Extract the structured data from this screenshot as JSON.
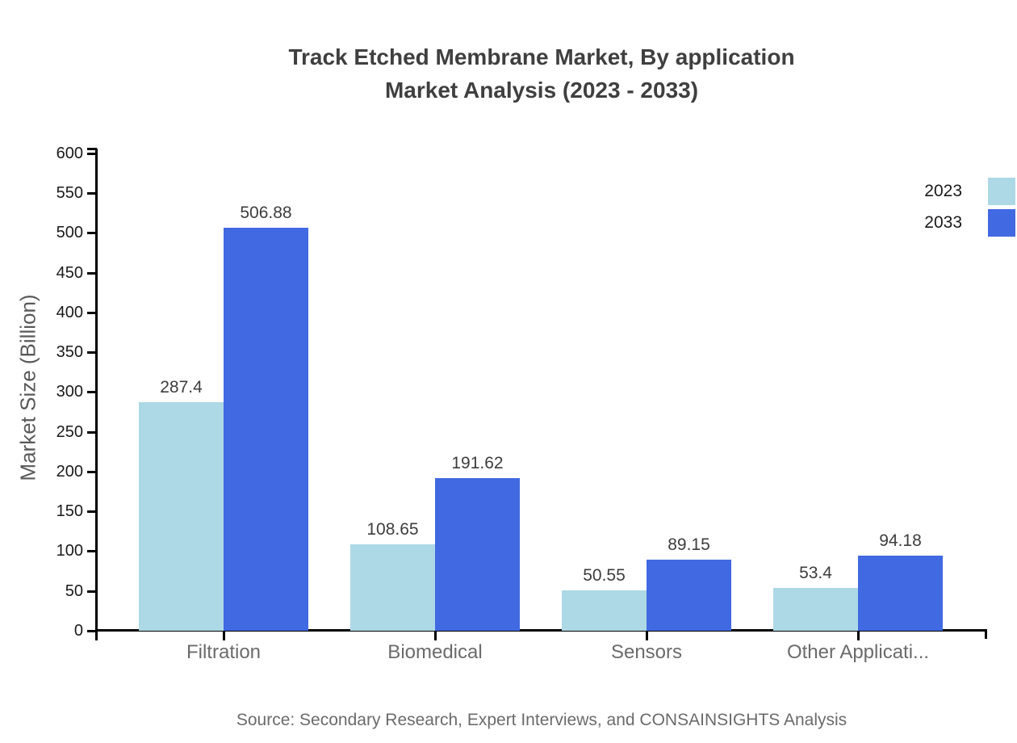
{
  "title": {
    "line1": "Track Etched Membrane Market, By application",
    "line2": "Market Analysis (2023 - 2033)"
  },
  "source_text": "Source: Secondary Research, Expert Interviews, and CONSAINSIGHTS Analysis",
  "chart_data": {
    "type": "bar",
    "title": "Track Etched Membrane Market, By application Market Analysis (2023 - 2033)",
    "categories": [
      "Filtration",
      "Biomedical",
      "Sensors",
      "Other Applicati..."
    ],
    "series": [
      {
        "name": "2023",
        "color": "#add8e6",
        "values": [
          287.4,
          108.65,
          50.55,
          53.4
        ],
        "labels": [
          "287.4",
          "108.65",
          "50.55",
          "53.4"
        ]
      },
      {
        "name": "2033",
        "color": "#4169e1",
        "values": [
          506.88,
          191.62,
          89.15,
          94.18
        ],
        "labels": [
          "506.88",
          "191.62",
          "89.15",
          "94.18"
        ]
      }
    ],
    "xlabel": "",
    "ylabel": "Market Size (Billion)",
    "ylim": [
      0,
      600
    ],
    "ytick_step": 50,
    "ytick_labels": [
      "0",
      "50",
      "100",
      "150",
      "200",
      "250",
      "300",
      "350",
      "400",
      "450",
      "500",
      "550",
      "600"
    ],
    "grid": false,
    "legend_position": "top-right",
    "bar_value_labels_shown": true
  },
  "colors": {
    "series_2023": "#add8e6",
    "series_2033": "#4169e1",
    "axis": "#000000",
    "title_text": "#3f3f3f",
    "tick_label_text": "#1a1a1a",
    "category_label_text": "#6b6b6b",
    "value_label_text": "#3d3d3d",
    "source_text": "#6b6b6b"
  }
}
